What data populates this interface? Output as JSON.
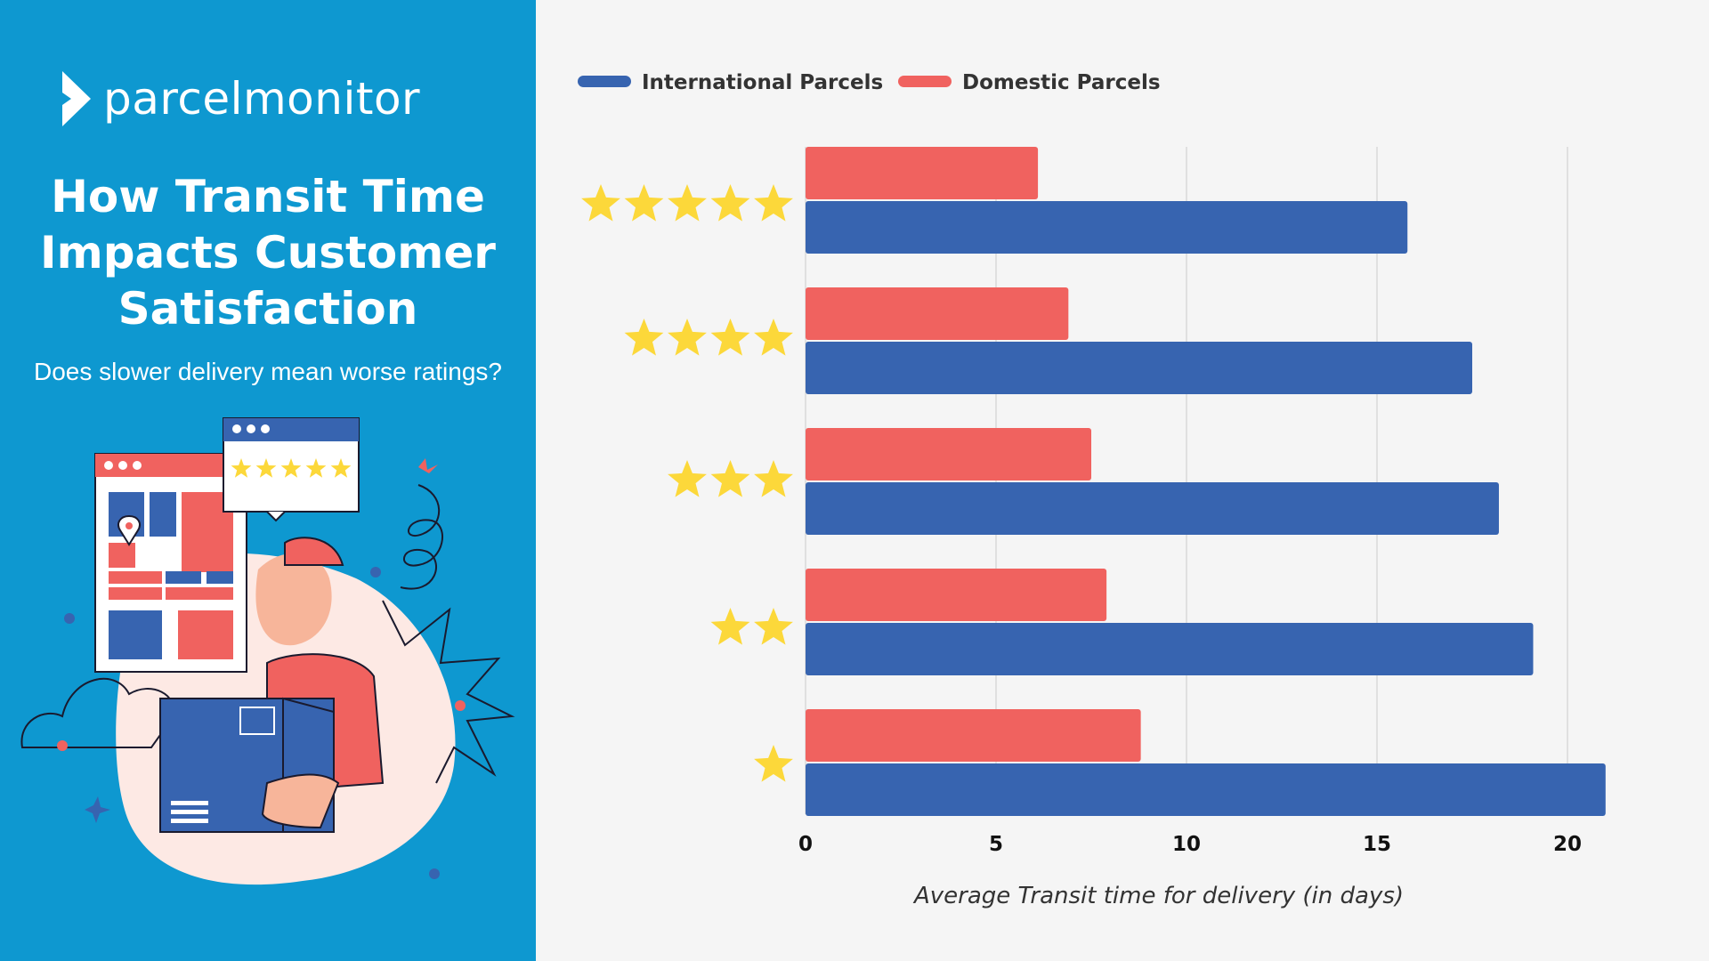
{
  "brand": {
    "logo_text": "parcelmonitor"
  },
  "header": {
    "title_lines": [
      "How Transit Time",
      "Impacts Customer",
      "Satisfaction"
    ],
    "subtitle": "Does slower delivery mean worse ratings?"
  },
  "colors": {
    "panel": "#0e98d0",
    "international": "#3764b0",
    "domestic": "#f0625f",
    "star": "#fcd83a",
    "grid": "#d9d9d9"
  },
  "chart_data": {
    "type": "bar",
    "orientation": "horizontal",
    "categories": [
      "5 stars",
      "4 stars",
      "3 stars",
      "2 stars",
      "1 star"
    ],
    "star_counts": [
      5,
      4,
      3,
      2,
      1
    ],
    "series": [
      {
        "name": "Domestic Parcels",
        "color": "#f0625f",
        "values": [
          6.1,
          6.9,
          7.5,
          7.9,
          8.8
        ]
      },
      {
        "name": "International Parcels",
        "color": "#3764b0",
        "values": [
          15.8,
          17.5,
          18.2,
          19.1,
          21.0
        ]
      }
    ],
    "legend": [
      "International Parcels",
      "Domestic Parcels"
    ],
    "legend_position": "top-left",
    "xlabel": "Average Transit time for delivery (in days)",
    "x_ticks": [
      "0",
      "5",
      "10",
      "15",
      "20"
    ],
    "xlim": [
      0,
      21
    ],
    "grid": true
  }
}
